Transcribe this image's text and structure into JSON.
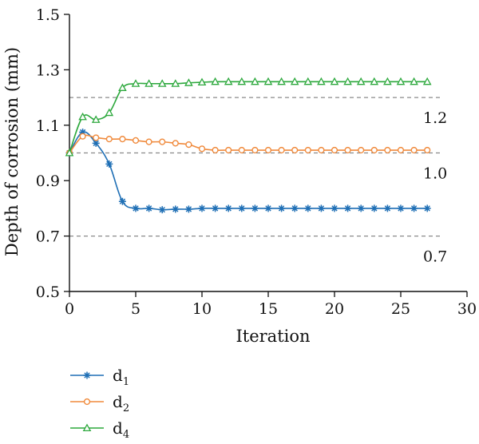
{
  "chart_data": {
    "type": "line",
    "xlabel": "Iteration",
    "ylabel": "Depth of corrosion (mm)",
    "xlim": [
      0,
      30
    ],
    "ylim": [
      0.5,
      1.5
    ],
    "xticks": [
      "0",
      "5",
      "10",
      "15",
      "20",
      "25",
      "30"
    ],
    "yticks": [
      "0.5",
      "0.7",
      "0.9",
      "1.1",
      "1.3",
      "1.5"
    ],
    "legend_position": "bottom-left",
    "reference_lines": [
      {
        "y": 1.2,
        "label": "1.2"
      },
      {
        "y": 1.0,
        "label": "1.0"
      },
      {
        "y": 0.7,
        "label": "0.7"
      }
    ],
    "x": [
      0,
      1,
      2,
      3,
      4,
      5,
      6,
      7,
      8,
      9,
      10,
      11,
      12,
      13,
      14,
      15,
      16,
      17,
      18,
      19,
      20,
      21,
      22,
      23,
      24,
      25,
      26,
      27
    ],
    "series": [
      {
        "name": "d",
        "subscript": "1",
        "color": "#1f6fb5",
        "marker": "star",
        "values": [
          1.0,
          1.075,
          1.035,
          0.96,
          0.825,
          0.8,
          0.8,
          0.795,
          0.797,
          0.797,
          0.8,
          0.8,
          0.8,
          0.8,
          0.8,
          0.8,
          0.8,
          0.8,
          0.8,
          0.8,
          0.8,
          0.8,
          0.8,
          0.8,
          0.8,
          0.8,
          0.8,
          0.8
        ]
      },
      {
        "name": "d",
        "subscript": "2",
        "color": "#f08a3c",
        "marker": "circle",
        "values": [
          1.0,
          1.06,
          1.055,
          1.05,
          1.05,
          1.045,
          1.04,
          1.04,
          1.035,
          1.03,
          1.015,
          1.01,
          1.01,
          1.01,
          1.01,
          1.01,
          1.01,
          1.01,
          1.01,
          1.01,
          1.01,
          1.01,
          1.01,
          1.01,
          1.01,
          1.01,
          1.01,
          1.01
        ]
      },
      {
        "name": "d",
        "subscript": "4",
        "color": "#2ca83c",
        "marker": "triangle",
        "values": [
          1.0,
          1.13,
          1.12,
          1.145,
          1.235,
          1.25,
          1.25,
          1.25,
          1.25,
          1.253,
          1.255,
          1.257,
          1.257,
          1.257,
          1.257,
          1.257,
          1.257,
          1.257,
          1.257,
          1.257,
          1.257,
          1.257,
          1.257,
          1.257,
          1.257,
          1.257,
          1.257,
          1.257
        ]
      }
    ]
  }
}
